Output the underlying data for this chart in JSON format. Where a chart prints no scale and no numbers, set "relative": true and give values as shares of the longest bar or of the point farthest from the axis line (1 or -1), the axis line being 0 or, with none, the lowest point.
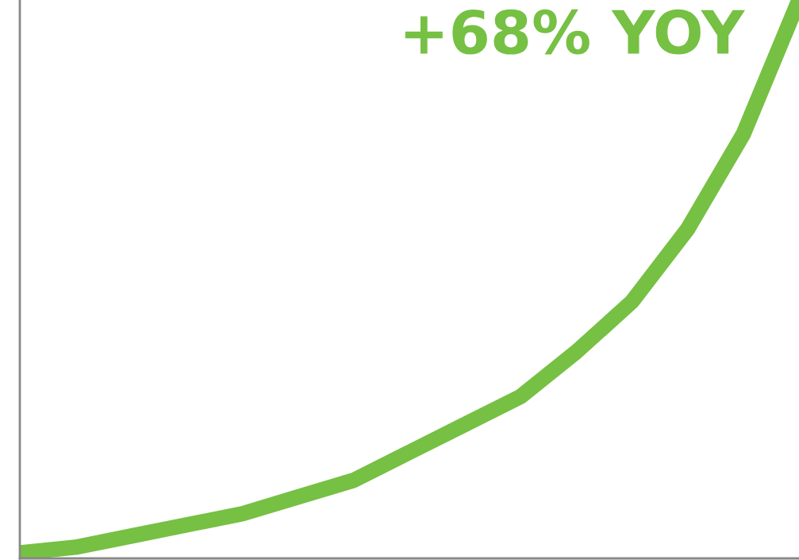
{
  "chart_data": {
    "type": "line",
    "relative": true,
    "categories": [
      null,
      null,
      null,
      null,
      null,
      null,
      null,
      null,
      null,
      null,
      null,
      null,
      null,
      null,
      null
    ],
    "series": [
      {
        "color": "#76c043",
        "values": [
          0.01,
          0.02,
          0.04,
          0.06,
          0.08,
          0.11,
          0.14,
          0.19,
          0.24,
          0.29,
          0.37,
          0.46,
          0.59,
          0.76,
          1.0
        ]
      }
    ],
    "annotations": [
      "+68% YOY"
    ],
    "legend": false,
    "line_style": "solid"
  }
}
